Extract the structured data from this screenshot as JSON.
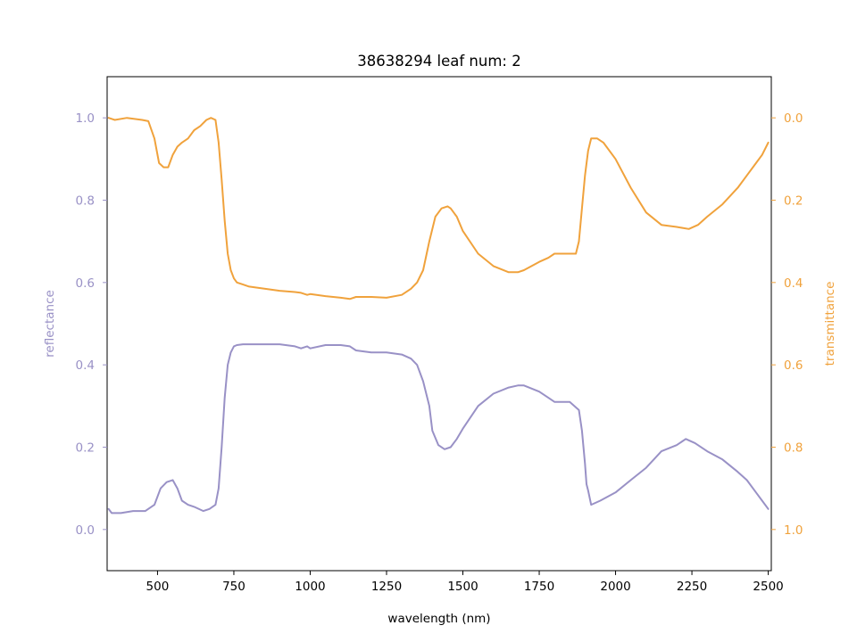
{
  "chart_data": {
    "type": "line",
    "title": "38638294 leaf num: 2",
    "xlabel": "wavelength (nm)",
    "ylabel_left": "reflectance",
    "ylabel_right": "transmittance",
    "xlim": [
      335,
      2510
    ],
    "ylim_left": [
      -0.1,
      1.1
    ],
    "ylim_right": [
      1.1,
      -0.1
    ],
    "x_ticks": [
      500,
      750,
      1000,
      1250,
      1500,
      1750,
      2000,
      2250,
      2500
    ],
    "y_ticks_left": [
      0.0,
      0.2,
      0.4,
      0.6,
      0.8,
      1.0
    ],
    "y_ticks_right": [
      0.0,
      0.2,
      0.4,
      0.6,
      0.8,
      1.0
    ],
    "grid": false,
    "colors": {
      "reflectance": "#9991c6",
      "transmittance": "#f0a23c",
      "frame": "#000000"
    },
    "series": [
      {
        "axis": "left",
        "color": "#9991c6",
        "x": [
          340,
          350,
          380,
          420,
          460,
          490,
          510,
          530,
          550,
          565,
          580,
          600,
          620,
          650,
          670,
          690,
          700,
          710,
          720,
          730,
          740,
          750,
          760,
          780,
          800,
          850,
          900,
          950,
          970,
          990,
          1000,
          1050,
          1100,
          1130,
          1150,
          1200,
          1250,
          1300,
          1330,
          1350,
          1370,
          1390,
          1400,
          1420,
          1440,
          1460,
          1480,
          1500,
          1550,
          1600,
          1650,
          1680,
          1700,
          1750,
          1780,
          1800,
          1850,
          1880,
          1890,
          1900,
          1905,
          1910,
          1920,
          1950,
          2000,
          2050,
          2100,
          2150,
          2200,
          2230,
          2260,
          2300,
          2350,
          2400,
          2430,
          2460,
          2480,
          2500
        ],
        "y": [
          0.05,
          0.04,
          0.04,
          0.045,
          0.045,
          0.06,
          0.1,
          0.115,
          0.12,
          0.1,
          0.07,
          0.06,
          0.055,
          0.045,
          0.05,
          0.06,
          0.1,
          0.2,
          0.32,
          0.4,
          0.43,
          0.445,
          0.448,
          0.45,
          0.45,
          0.45,
          0.45,
          0.445,
          0.44,
          0.445,
          0.44,
          0.448,
          0.448,
          0.445,
          0.435,
          0.43,
          0.43,
          0.425,
          0.415,
          0.4,
          0.36,
          0.3,
          0.24,
          0.205,
          0.195,
          0.2,
          0.22,
          0.245,
          0.3,
          0.33,
          0.345,
          0.35,
          0.35,
          0.335,
          0.32,
          0.31,
          0.31,
          0.29,
          0.24,
          0.16,
          0.11,
          0.095,
          0.06,
          0.07,
          0.09,
          0.12,
          0.15,
          0.19,
          0.205,
          0.22,
          0.21,
          0.19,
          0.17,
          0.14,
          0.12,
          0.09,
          0.07,
          0.05
        ]
      },
      {
        "axis": "right",
        "color": "#f0a23c",
        "x": [
          340,
          360,
          400,
          450,
          470,
          490,
          505,
          520,
          535,
          550,
          565,
          580,
          600,
          620,
          640,
          660,
          675,
          690,
          700,
          710,
          720,
          730,
          740,
          750,
          760,
          780,
          800,
          850,
          900,
          950,
          970,
          990,
          1000,
          1050,
          1100,
          1130,
          1150,
          1200,
          1250,
          1300,
          1330,
          1350,
          1370,
          1390,
          1410,
          1430,
          1450,
          1460,
          1480,
          1500,
          1550,
          1600,
          1650,
          1680,
          1700,
          1750,
          1780,
          1800,
          1850,
          1870,
          1880,
          1890,
          1900,
          1910,
          1920,
          1940,
          1960,
          2000,
          2050,
          2100,
          2150,
          2200,
          2240,
          2270,
          2300,
          2350,
          2400,
          2430,
          2460,
          2480,
          2500
        ],
        "y": [
          0.0,
          0.005,
          0.0,
          0.005,
          0.008,
          0.05,
          0.11,
          0.12,
          0.12,
          0.09,
          0.07,
          0.06,
          0.05,
          0.03,
          0.02,
          0.005,
          0.0,
          0.005,
          0.06,
          0.15,
          0.25,
          0.33,
          0.37,
          0.39,
          0.4,
          0.405,
          0.41,
          0.415,
          0.42,
          0.423,
          0.425,
          0.43,
          0.428,
          0.433,
          0.437,
          0.44,
          0.435,
          0.435,
          0.437,
          0.43,
          0.415,
          0.4,
          0.37,
          0.3,
          0.24,
          0.22,
          0.215,
          0.22,
          0.24,
          0.275,
          0.33,
          0.36,
          0.375,
          0.375,
          0.37,
          0.35,
          0.34,
          0.33,
          0.33,
          0.33,
          0.3,
          0.22,
          0.14,
          0.08,
          0.05,
          0.05,
          0.06,
          0.1,
          0.17,
          0.23,
          0.26,
          0.265,
          0.27,
          0.26,
          0.24,
          0.21,
          0.17,
          0.14,
          0.11,
          0.09,
          0.06
        ]
      }
    ]
  }
}
